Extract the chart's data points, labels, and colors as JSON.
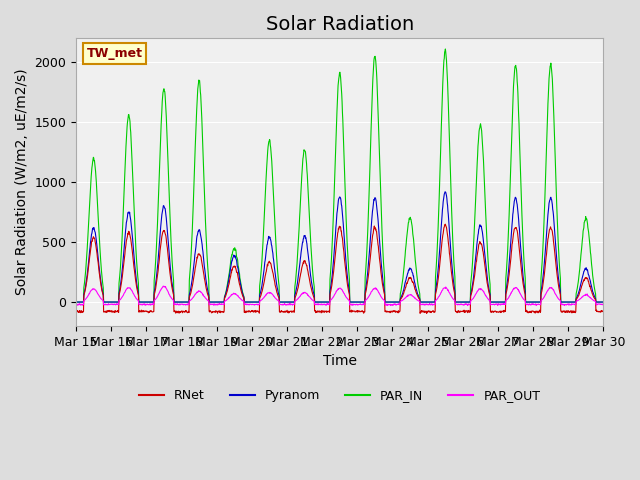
{
  "title": "Solar Radiation",
  "ylabel": "Solar Radiation (W/m2, uE/m2/s)",
  "xlabel": "Time",
  "ylim": [
    -200,
    2200
  ],
  "station_label": "TW_met",
  "x_tick_labels": [
    "Mar 15",
    "Mar 16",
    "Mar 17",
    "Mar 18",
    "Mar 19",
    "Mar 20",
    "Mar 21",
    "Mar 22",
    "Mar 23",
    "Mar 24",
    "Mar 25",
    "Mar 26",
    "Mar 27",
    "Mar 28",
    "Mar 29",
    "Mar 30"
  ],
  "legend_entries": [
    "RNet",
    "Pyranom",
    "PAR_IN",
    "PAR_OUT"
  ],
  "line_colors": {
    "RNet": "#cc0000",
    "Pyranom": "#0000cc",
    "PAR_IN": "#00cc00",
    "PAR_OUT": "#ff00ff"
  },
  "fig_bg_color": "#dddddd",
  "plot_bg_color": "#f0f0f0",
  "title_fontsize": 14,
  "label_fontsize": 10,
  "tick_fontsize": 9,
  "n_days": 15,
  "points_per_day": 96,
  "par_in_peaks": [
    1200,
    1560,
    1780,
    1840,
    450,
    1350,
    1270,
    1910,
    2050,
    700,
    2100,
    1480,
    1980,
    1980,
    700
  ],
  "pyranom_peaks": [
    620,
    750,
    800,
    600,
    390,
    540,
    550,
    880,
    870,
    280,
    920,
    640,
    870,
    870,
    280
  ],
  "rnet_peaks": [
    540,
    580,
    600,
    400,
    300,
    330,
    340,
    630,
    620,
    200,
    640,
    500,
    630,
    620,
    200
  ],
  "par_out_peaks": [
    110,
    120,
    130,
    90,
    70,
    80,
    80,
    115,
    115,
    60,
    120,
    110,
    120,
    120,
    60
  ]
}
